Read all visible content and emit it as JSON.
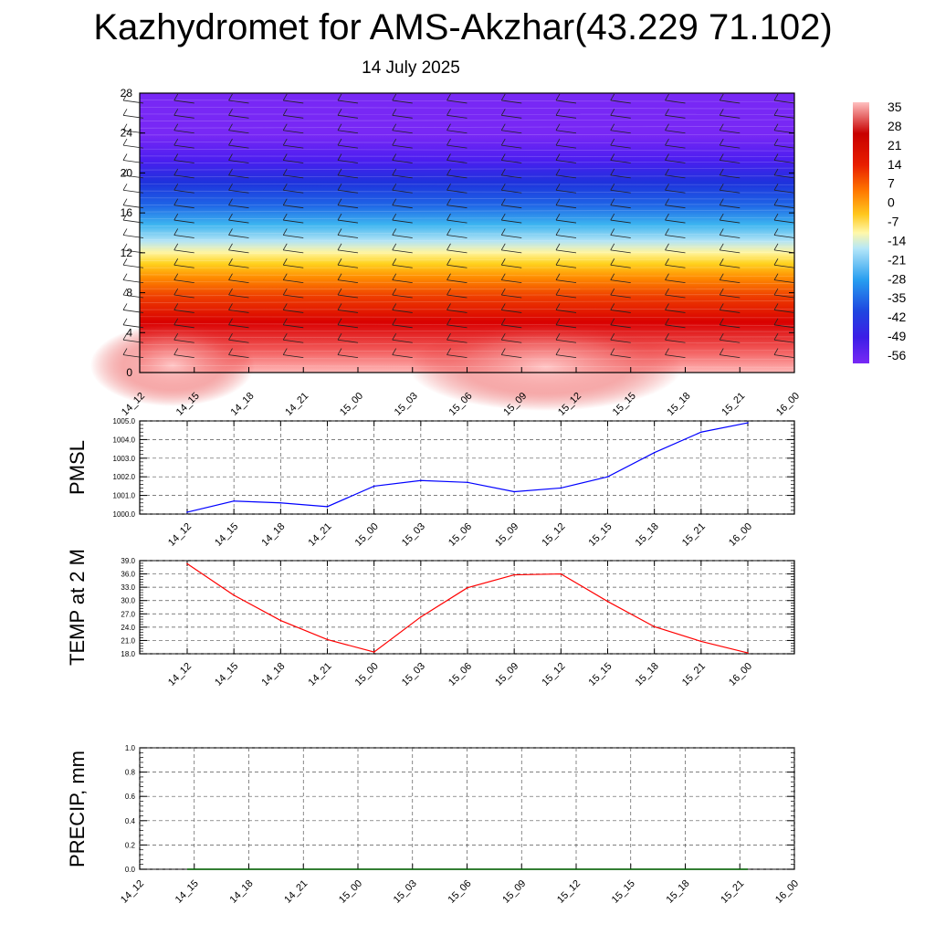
{
  "title": "Kazhydromet for AMS-Akzhar(43.229 71.102)",
  "subtitle": "14 July 2025",
  "colors": {
    "pmsl_line": "#0000ff",
    "temp_line": "#ff0000",
    "precip_line": "#006400",
    "grid": "#555555"
  },
  "chart_data": [
    {
      "type": "heatmap",
      "title": "",
      "xlabel": "",
      "ylabel": "",
      "categories": [
        "14_12",
        "14_15",
        "14_18",
        "14_21",
        "15_00",
        "15_03",
        "15_06",
        "15_09",
        "15_12",
        "15_15",
        "15_18",
        "15_21",
        "16_00"
      ],
      "y_ticks": [
        0,
        4,
        8,
        12,
        16,
        20,
        24,
        28
      ],
      "ylim": [
        0,
        28
      ],
      "colorbar_labels": [
        "35",
        "28",
        "21",
        "14",
        "7",
        "0",
        "-7",
        "-14",
        "-21",
        "-28",
        "-35",
        "-42",
        "-49",
        "-56"
      ],
      "colorbar_range": [
        -56,
        35
      ],
      "wind_barbs": true
    },
    {
      "type": "line",
      "ylabel": "PMSL",
      "categories": [
        "14_12",
        "14_15",
        "14_18",
        "14_21",
        "15_00",
        "15_03",
        "15_06",
        "15_09",
        "15_12",
        "15_15",
        "15_18",
        "15_21",
        "16_00"
      ],
      "values": [
        1000.1,
        1000.7,
        1000.6,
        1000.4,
        1001.5,
        1001.8,
        1001.7,
        1001.2,
        1001.4,
        1002.0,
        1003.3,
        1004.4,
        1004.9
      ],
      "ylim": [
        1000.0,
        1005.0
      ],
      "y_tick_labels": [
        "1000.0",
        "1001.0",
        "1002.0",
        "1003.0",
        "1004.0",
        "1005.0"
      ],
      "grid": true
    },
    {
      "type": "line",
      "ylabel": "TEMP at 2 M",
      "categories": [
        "14_12",
        "14_15",
        "14_18",
        "14_21",
        "15_00",
        "15_03",
        "15_06",
        "15_09",
        "15_12",
        "15_15",
        "15_18",
        "15_21",
        "16_00"
      ],
      "values": [
        38.3,
        31.2,
        25.5,
        21.2,
        18.4,
        26.3,
        32.9,
        35.8,
        36.0,
        29.8,
        24.1,
        20.8,
        18.2
      ],
      "ylim": [
        18.0,
        39.0
      ],
      "y_tick_labels": [
        "18.0",
        "21.0",
        "24.0",
        "27.0",
        "30.0",
        "33.0",
        "36.0",
        "39.0"
      ],
      "grid": true
    },
    {
      "type": "line",
      "ylabel": "PRECIP, mm",
      "categories": [
        "14_12",
        "14_15",
        "14_18",
        "14_21",
        "15_00",
        "15_03",
        "15_06",
        "15_09",
        "15_12",
        "15_15",
        "15_18",
        "15_21",
        "16_00"
      ],
      "values": [
        0,
        0,
        0,
        0,
        0,
        0,
        0,
        0,
        0,
        0,
        0,
        0,
        0
      ],
      "ylim": [
        0.0,
        1.0
      ],
      "y_tick_labels": [
        "0.0",
        "0.2",
        "0.4",
        "0.6",
        "0.8",
        "1.0"
      ],
      "grid": true
    }
  ]
}
